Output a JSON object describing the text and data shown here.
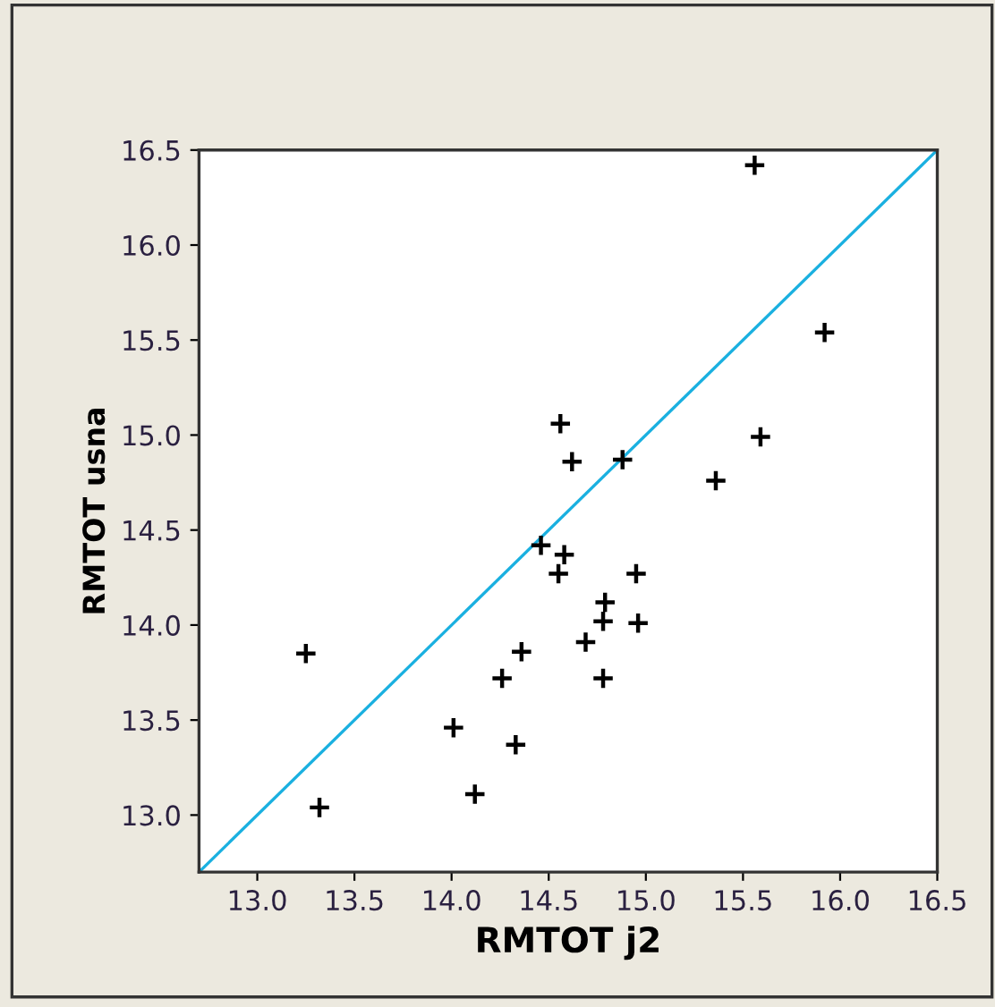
{
  "chart_data": {
    "type": "scatter",
    "xlabel": "RMTOT j2",
    "ylabel": "RMTOT usna",
    "xlim": [
      12.7,
      16.5
    ],
    "ylim": [
      12.7,
      16.5
    ],
    "xticks": [
      {
        "value": 13.0,
        "label": "13.0"
      },
      13.5,
      {
        "value": 14.0,
        "label": "14.0"
      },
      14.5,
      {
        "value": 15.0,
        "label": "15.0"
      },
      15.5,
      {
        "value": 16.0,
        "label": "16.0"
      },
      16.5
    ],
    "yticks": [
      {
        "value": 13.0,
        "label": "13.0"
      },
      13.5,
      {
        "value": 14.0,
        "label": "14.0"
      },
      14.5,
      {
        "value": 15.0,
        "label": "15.0"
      },
      15.5,
      {
        "value": 16.0,
        "label": "16.0"
      },
      16.5
    ],
    "grid": false,
    "legend": false,
    "series": [
      {
        "marker": "cross",
        "color": "#000000",
        "x": [
          15.56,
          15.92,
          14.56,
          14.62,
          14.88,
          15.59,
          15.36,
          14.46,
          14.58,
          14.55,
          14.95,
          14.79,
          14.78,
          14.96,
          14.69,
          13.25,
          14.36,
          14.26,
          14.78,
          14.01,
          14.33,
          14.12,
          13.32
        ],
        "values": [
          16.42,
          15.54,
          15.06,
          14.86,
          14.87,
          14.99,
          14.76,
          14.42,
          14.37,
          14.27,
          14.27,
          14.12,
          14.02,
          14.01,
          13.91,
          13.85,
          13.86,
          13.72,
          13.72,
          13.46,
          13.37,
          13.11,
          13.04
        ]
      },
      {
        "type": "line",
        "color": "#1ab0e0",
        "x": [
          12.7,
          16.5
        ],
        "values": [
          12.7,
          16.5
        ]
      }
    ]
  }
}
